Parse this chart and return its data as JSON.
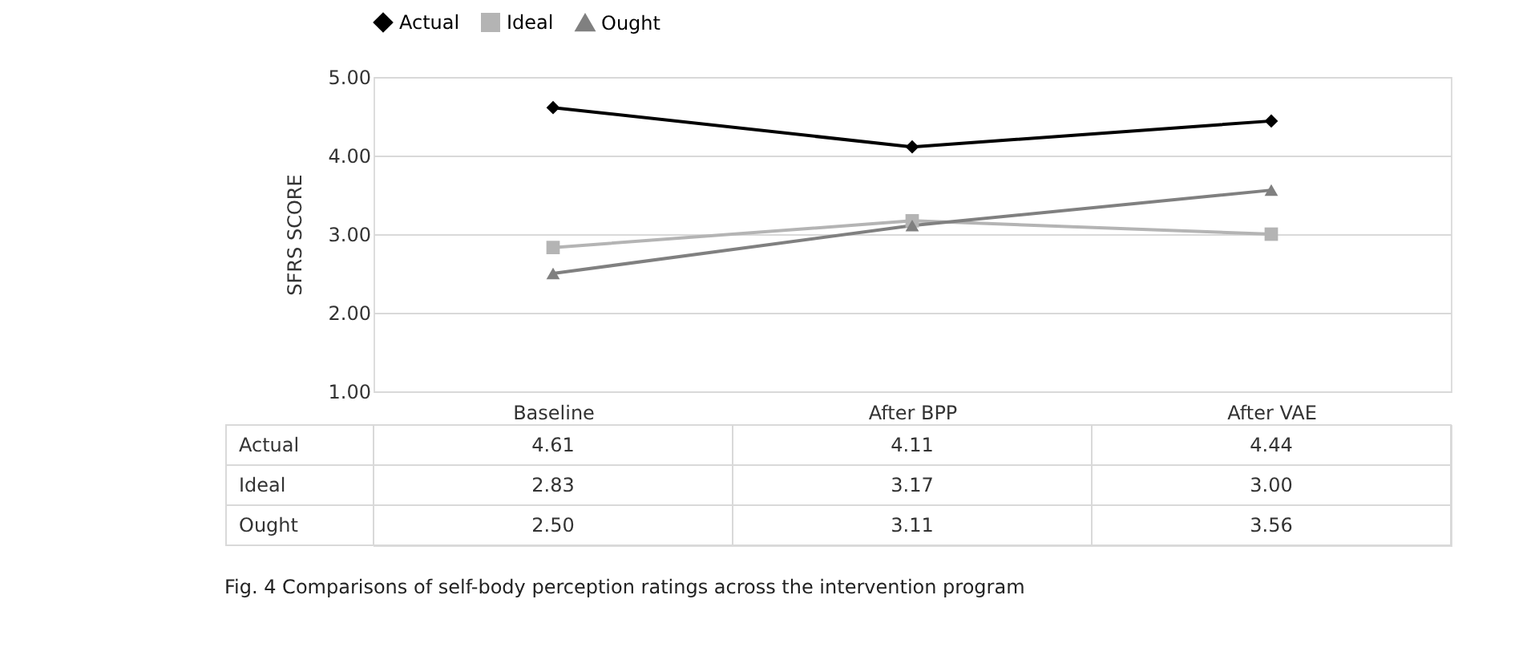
{
  "chart_data": {
    "type": "line",
    "ylabel": "SFRS SCORE",
    "categories": [
      "Baseline",
      "After BPP",
      "After VAE"
    ],
    "series": [
      {
        "name": "Actual",
        "color": "#000000",
        "marker": "diamond",
        "values": [
          4.61,
          4.11,
          4.44
        ],
        "value_labels": [
          "4.61",
          "4.11",
          "4.44"
        ]
      },
      {
        "name": "Ideal",
        "color": "#b4b4b4",
        "marker": "square",
        "values": [
          2.83,
          3.17,
          3.0
        ],
        "value_labels": [
          "2.83",
          "3.17",
          "3.00"
        ]
      },
      {
        "name": "Ought",
        "color": "#808080",
        "marker": "triangle",
        "values": [
          2.5,
          3.11,
          3.56
        ],
        "value_labels": [
          "2.50",
          "3.11",
          "3.56"
        ]
      }
    ],
    "ylim": [
      1,
      5
    ],
    "yticks": [
      {
        "value": 1,
        "label": "1.00"
      },
      {
        "value": 2,
        "label": "2.00"
      },
      {
        "value": 3,
        "label": "3.00"
      },
      {
        "value": 4,
        "label": "4.00"
      },
      {
        "value": 5,
        "label": "5.00"
      }
    ],
    "grid": "y",
    "legend": "top",
    "annotations": [
      "Fig. 4  Comparisons of self-body perception ratings across the intervention program"
    ]
  }
}
